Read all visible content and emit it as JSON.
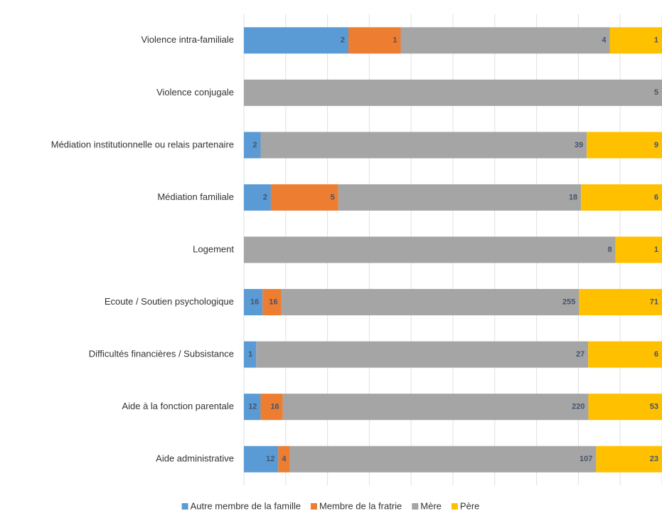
{
  "chart_data": {
    "type": "stacked_bar_100",
    "orientation": "horizontal",
    "categories": [
      "Violence intra-familiale",
      "Violence conjugale",
      "Médiation institutionnelle ou relais partenaire",
      "Médiation familiale",
      "Logement",
      "Ecoute / Soutien psychologique",
      "Difficultés financières / Subsistance",
      "Aide à la fonction parentale",
      "Aide administrative"
    ],
    "series": [
      {
        "name": "Autre membre de la famille",
        "color": "#5b9bd5",
        "values": [
          2,
          null,
          2,
          2,
          null,
          16,
          1,
          12,
          12
        ]
      },
      {
        "name": "Membre de la fratrie",
        "color": "#ed7d31",
        "values": [
          1,
          null,
          null,
          5,
          null,
          16,
          null,
          16,
          4
        ]
      },
      {
        "name": "Mère",
        "color": "#a5a5a5",
        "values": [
          4,
          5,
          39,
          18,
          8,
          255,
          27,
          220,
          107
        ]
      },
      {
        "name": "Père",
        "color": "#ffc000",
        "values": [
          1,
          null,
          9,
          6,
          1,
          71,
          6,
          53,
          23
        ]
      }
    ],
    "grid": true,
    "legend": "bottom"
  }
}
